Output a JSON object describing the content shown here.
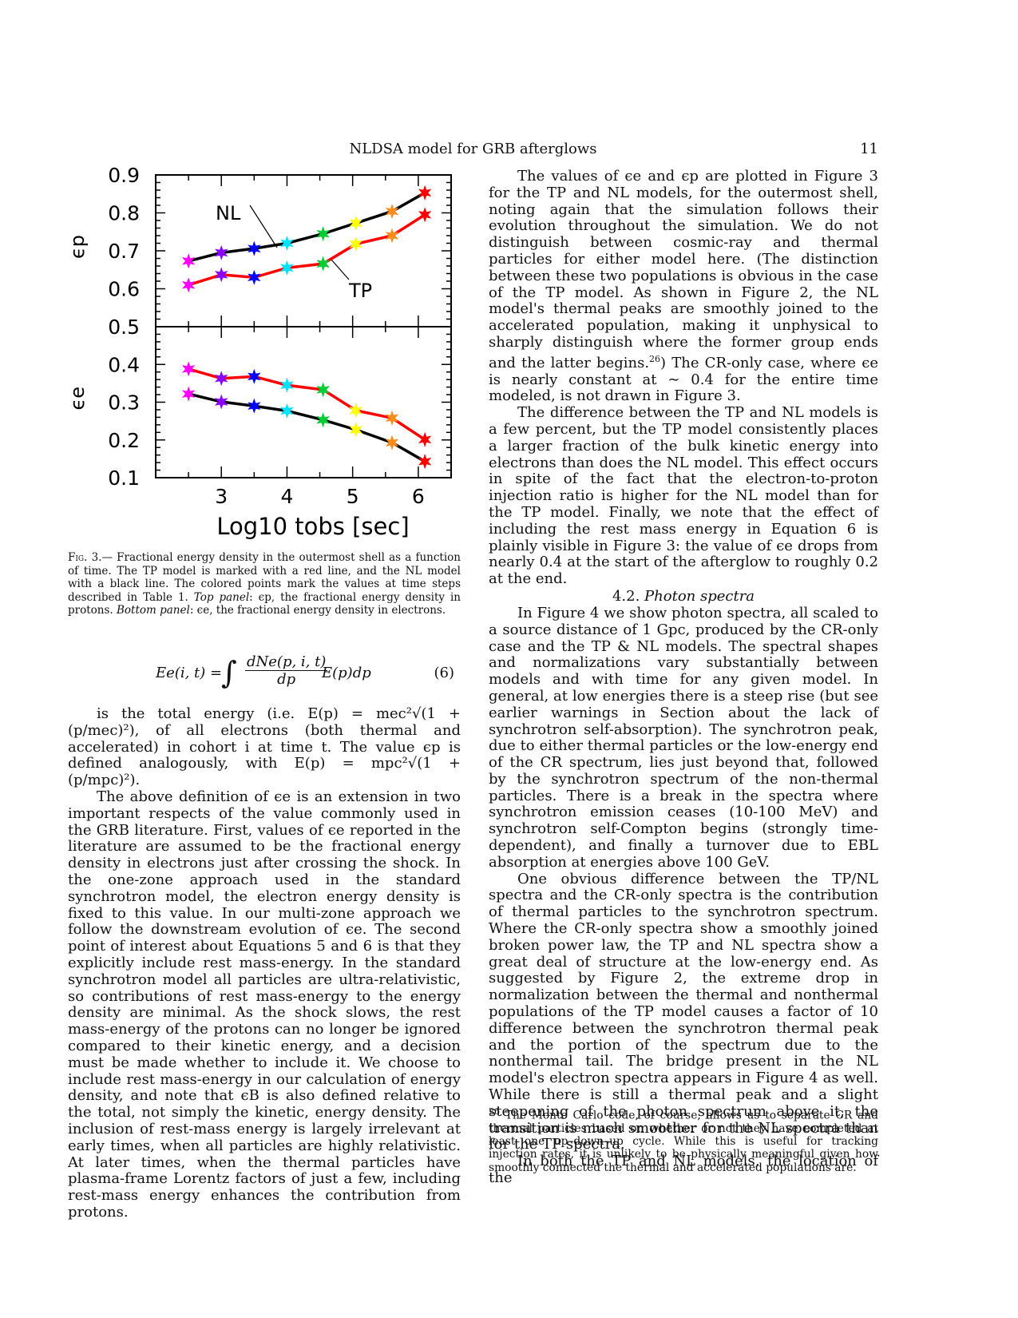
{
  "header": {
    "running_title": "NLDSA model for GRB afterglows",
    "page_number": "11"
  },
  "chart_data": {
    "type": "line",
    "panels": [
      {
        "name": "top",
        "ylabel": "ϵp",
        "ylim": [
          0.5,
          0.9
        ],
        "yticks": [
          "0.9",
          "0.8",
          "0.7",
          "0.6",
          "0.5"
        ],
        "annotations": [
          "NL",
          "TP"
        ],
        "series": [
          {
            "name": "NL",
            "color": "#000000",
            "x": [
              2.5,
              3.0,
              3.5,
              4.0,
              4.55,
              5.05,
              5.6,
              6.1
            ],
            "values": [
              0.673,
              0.695,
              0.706,
              0.72,
              0.745,
              0.773,
              0.804,
              0.853
            ]
          },
          {
            "name": "TP",
            "color": "#ff0000",
            "x": [
              2.5,
              3.0,
              3.5,
              4.0,
              4.55,
              5.05,
              5.6,
              6.1
            ],
            "values": [
              0.61,
              0.637,
              0.63,
              0.655,
              0.666,
              0.718,
              0.74,
              0.795
            ]
          }
        ]
      },
      {
        "name": "bottom",
        "ylabel": "ϵe",
        "ylim": [
          0.1,
          0.5
        ],
        "yticks": [
          "0.4",
          "0.3",
          "0.2",
          "0.1"
        ],
        "series": [
          {
            "name": "NL",
            "color": "#000000",
            "x": [
              2.5,
              3.0,
              3.5,
              4.0,
              4.55,
              5.05,
              5.6,
              6.1
            ],
            "values": [
              0.322,
              0.301,
              0.29,
              0.277,
              0.253,
              0.227,
              0.193,
              0.143
            ]
          },
          {
            "name": "TP",
            "color": "#ff0000",
            "x": [
              2.5,
              3.0,
              3.5,
              4.0,
              4.55,
              5.05,
              5.6,
              6.1
            ],
            "values": [
              0.388,
              0.363,
              0.368,
              0.345,
              0.333,
              0.278,
              0.258,
              0.201
            ]
          }
        ]
      }
    ],
    "xlabel": "Log10 tobs [sec]",
    "xlim": [
      2.0,
      6.5
    ],
    "xticks": [
      "3",
      "4",
      "5",
      "6"
    ],
    "point_colors": [
      "#ff00ff",
      "#8a00ff",
      "#0000ff",
      "#00e0ff",
      "#00cc33",
      "#ffff00",
      "#ff8c1a",
      "#ff0000"
    ]
  },
  "caption": {
    "label": "Fig. 3.",
    "text": "— Fractional energy density in the outermost shell as a function of time. The TP model is marked with a red line, and the NL model with a black line. The colored points mark the values at time steps described in Table 1.",
    "top_label": "Top panel",
    "top_text": ": ϵp, the fractional energy density in protons.",
    "bottom_label": "Bottom panel",
    "bottom_text": ": ϵe, the fractional energy density in electrons."
  },
  "equation": {
    "lhs": "Ee(i, t) =",
    "numerator": "dNe(p, i, t)",
    "denominator": "dp",
    "rhs": "E(p)dp",
    "number": "(6)"
  },
  "left_text": {
    "p1": "is the total energy (i.e. E(p) = mec²√(1 + (p/mec)²), of all electrons (both thermal and accelerated) in cohort i at time t. The value ϵp is defined analogously, with E(p) = mpc²√(1 + (p/mpc)²).",
    "p2": "The above definition of ϵe is an extension in two important respects of the value commonly used in the GRB literature. First, values of ϵe reported in the literature are assumed to be the fractional energy density in electrons just after crossing the shock. In the one-zone approach used in the standard synchrotron model, the electron energy density is fixed to this value. In our multi-zone approach we follow the downstream evolution of ϵe. The second point of interest about Equations 5 and 6 is that they explicitly include rest mass-energy. In the standard synchrotron model all particles are ultra-relativistic, so contributions of rest mass-energy to the energy density are minimal. As the shock slows, the rest mass-energy of the protons can no longer be ignored compared to their kinetic energy, and a decision must be made whether to include it. We choose to include rest mass-energy in our calculation of energy density, and note that ϵB is also defined relative to the total, not simply the kinetic, energy density. The inclusion of rest-mass energy is largely irrelevant at early times, when all particles are highly relativistic. At later times, when the thermal particles have plasma-frame Lorentz factors of just a few, including rest-mass energy enhances the contribution from protons."
  },
  "right_text": {
    "p1": "The values of ϵe and ϵp are plotted in Figure 3 for the TP and NL models, for the outermost shell, noting again that the simulation follows their evolution throughout the simulation. We do not distinguish between cosmic-ray and thermal particles for either model here. (The distinction between these two populations is obvious in the case of the TP model. As shown in Figure 2, the NL model's thermal peaks are smoothly joined to the accelerated population, making it unphysical to sharply distinguish where the former group ends and the latter begins.",
    "p1_sup": "26",
    "p1_end": ") The CR-only case, where ϵe is nearly constant at ∼ 0.4 for the entire time modeled, is not drawn in Figure 3.",
    "p2": "The difference between the TP and NL models is a few percent, but the TP model consistently places a larger fraction of the bulk kinetic energy into electrons than does the NL model. This effect occurs in spite of the fact that the electron-to-proton injection ratio is higher for the NL model than for the TP model. Finally, we note that the effect of including the rest mass energy in Equation 6 is plainly visible in Figure 3: the value of ϵe drops from nearly 0.4 at the start of the afterglow to roughly 0.2 at the end.",
    "section_number": "4.2.",
    "section_title": "Photon spectra",
    "p3": "In Figure 4 we show photon spectra, all scaled to a source distance of 1 Gpc, produced by the CR-only case and the TP & NL models. The spectral shapes and normalizations vary substantially between models and with time for any given model. In general, at low energies there is a steep rise (but see earlier warnings in Section about the lack of synchrotron self-absorption). The synchrotron peak, due to either thermal particles or the low-energy end of the CR spectrum, lies just beyond that, followed by the synchrotron spectrum of the non-thermal particles. There is a break in the spectra where synchrotron emission ceases (10-100 MeV) and synchrotron self-Compton begins (strongly time-dependent), and finally a turnover due to EBL absorption at energies above 100 GeV.",
    "p4": "One obvious difference between the TP/NL spectra and the CR-only spectra is the contribution of thermal particles to the synchrotron spectrum. Where the CR-only spectra show a smoothly joined broken power law, the TP and NL spectra show a great deal of structure at the low-energy end. As suggested by Figure 2, the extreme drop in normalization between the thermal and nonthermal populations of the TP model causes a factor of 10 difference between the synchrotron thermal peak and the portion of the spectrum due to the nonthermal tail. The bridge present in the NL model's electron spectra appears in Figure 4 as well. While there is still a thermal peak and a slight steepening of the photon spectrum above it, the transition is much smoother for the NL spectra than for the TP spectra.",
    "p5": "In both the TP and NL models, the location of the"
  },
  "footnote": {
    "mark": "26",
    "text": "The Monte Carlo code, of course, allows us to separate CR and thermal particles based on whether or not they have completed at least one up–down–up cycle. While this is useful for tracking injection rates, it is unlikely to be physically meaningful given how smoothly connected the thermal and accelerated populations are."
  }
}
